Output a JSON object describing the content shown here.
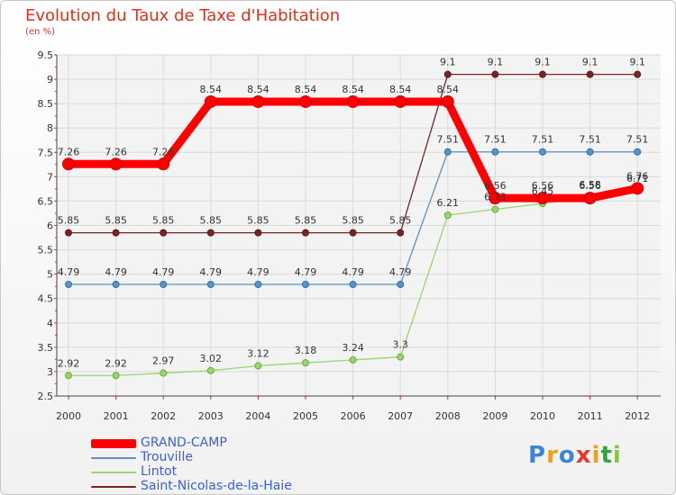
{
  "title": "Evolution du Taux de Taxe d'Habitation",
  "subtitle": "(en %)",
  "logo": {
    "text": "Proxiti",
    "letters": [
      "P",
      "r",
      "o",
      "x",
      "i",
      "t",
      "i"
    ],
    "colors": [
      "#3a86d6",
      "#f0a020",
      "#3a86d6",
      "#e23b2b",
      "#f0a020",
      "#2da83a",
      "#8bc34a"
    ]
  },
  "chart_data": {
    "type": "line",
    "title": "Evolution du Taux de Taxe d'Habitation",
    "ylabel": "(en %)",
    "xlabel": "",
    "ylim": [
      2.5,
      9.5
    ],
    "yticks": [
      2.5,
      3,
      3.5,
      4,
      4.5,
      5,
      5.5,
      6,
      6.5,
      7,
      7.5,
      8,
      8.5,
      9,
      9.5
    ],
    "ytick_labels": [
      "2.5",
      "3",
      "3.5",
      "4",
      "4.5",
      "5",
      "5.5",
      "6",
      "6.5",
      "7",
      "7.5",
      "8",
      "8.5",
      "9",
      "9.5"
    ],
    "categories": [
      "2000",
      "2001",
      "2002",
      "2003",
      "2004",
      "2005",
      "2006",
      "2007",
      "2008",
      "2009",
      "2010",
      "2011",
      "2012"
    ],
    "grid": true,
    "series": [
      {
        "name": "Saint-Nicolas-de-la-Haie",
        "color": "#7a2525",
        "width": 1.3,
        "values": [
          5.85,
          5.85,
          5.85,
          5.85,
          5.85,
          5.85,
          5.85,
          5.85,
          9.1,
          9.1,
          9.1,
          9.1,
          9.1
        ],
        "labels": [
          "5.85",
          "5.85",
          "5.85",
          "5.85",
          "5.85",
          "5.85",
          "5.85",
          "5.85",
          "9.1",
          "9.1",
          "9.1",
          "9.1",
          "9.1"
        ]
      },
      {
        "name": "Trouville",
        "color": "#5b93c8",
        "width": 1.3,
        "values": [
          4.79,
          4.79,
          4.79,
          4.79,
          4.79,
          4.79,
          4.79,
          4.79,
          7.51,
          7.51,
          7.51,
          7.51,
          7.51
        ],
        "labels": [
          "4.79",
          "4.79",
          "4.79",
          "4.79",
          "4.79",
          "4.79",
          "4.79",
          "4.79",
          "7.51",
          "7.51",
          "7.51",
          "7.51",
          "7.51"
        ]
      },
      {
        "name": "Lintot",
        "color": "#9ad56d",
        "width": 1.3,
        "values": [
          2.92,
          2.92,
          2.97,
          3.02,
          3.12,
          3.18,
          3.24,
          3.3,
          6.21,
          6.33,
          6.45,
          6.58,
          6.71
        ],
        "labels": [
          "2.92",
          "2.92",
          "2.97",
          "3.02",
          "3.12",
          "3.18",
          "3.24",
          "3.3",
          "6.21",
          "6.33",
          "6.45",
          "6.58",
          "6.71"
        ]
      },
      {
        "name": "GRAND-CAMP",
        "color": "#ff0000",
        "width": 9,
        "values": [
          7.26,
          7.26,
          7.26,
          8.54,
          8.54,
          8.54,
          8.54,
          8.54,
          8.54,
          6.56,
          6.56,
          6.56,
          6.76
        ],
        "labels": [
          "7.26",
          "7.26",
          "7.26",
          "8.54",
          "8.54",
          "8.54",
          "8.54",
          "8.54",
          "8.54",
          "6.56",
          "6.56",
          "6.56",
          "6.76"
        ]
      }
    ],
    "legend": [
      {
        "name": "GRAND-CAMP",
        "color": "#ff0000"
      },
      {
        "name": "Trouville",
        "color": "#5b93c8"
      },
      {
        "name": "Lintot",
        "color": "#9ad56d"
      },
      {
        "name": "Saint-Nicolas-de-la-Haie",
        "color": "#7a2525"
      }
    ],
    "legend_position": "bottom-left"
  }
}
